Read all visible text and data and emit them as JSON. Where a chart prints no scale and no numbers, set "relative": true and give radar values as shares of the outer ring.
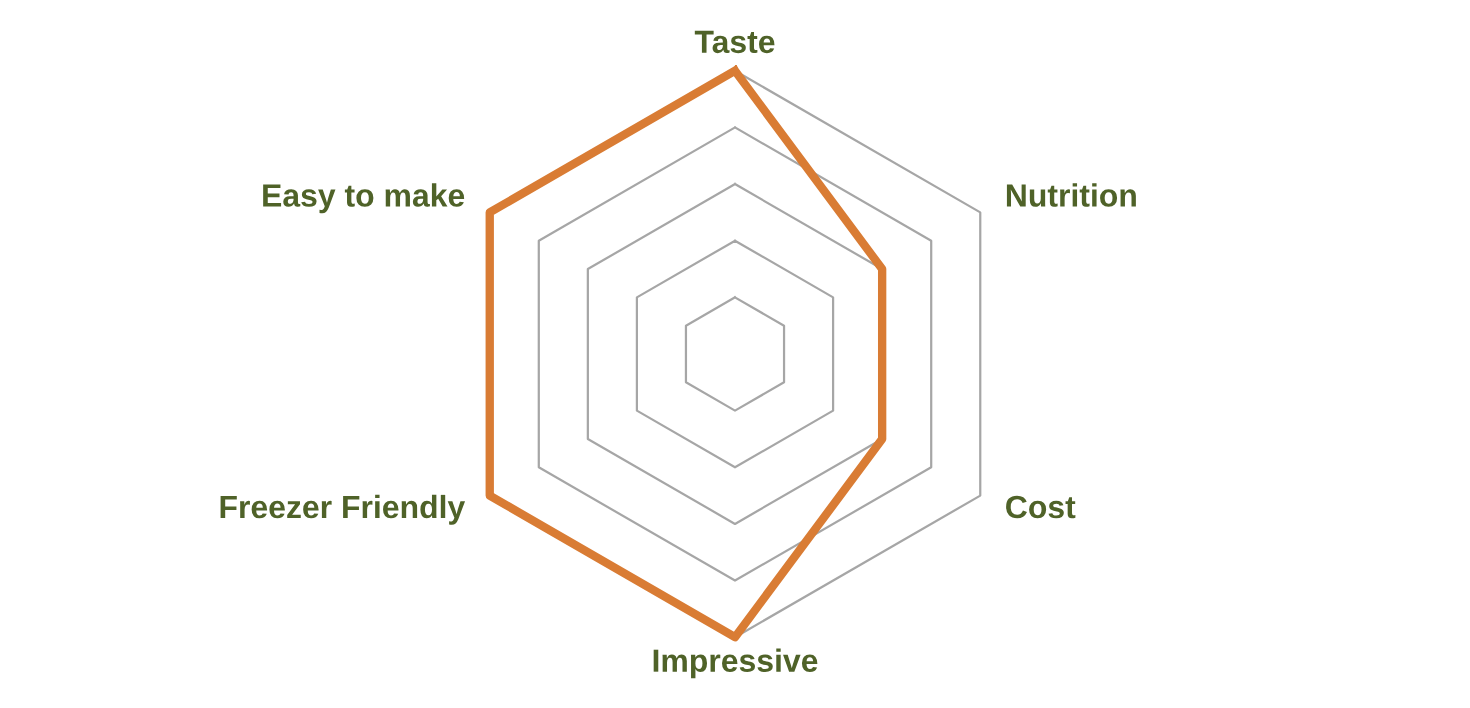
{
  "chart_data": {
    "type": "radar",
    "relative": true,
    "grid": true,
    "categories": [
      "Taste",
      "Nutrition",
      "Cost",
      "Impressive",
      "Freezer Friendly",
      "Easy to make"
    ],
    "series": [
      {
        "color": "#d97c34",
        "values": [
          1,
          0.6,
          0.6,
          1,
          1,
          1
        ]
      }
    ]
  }
}
